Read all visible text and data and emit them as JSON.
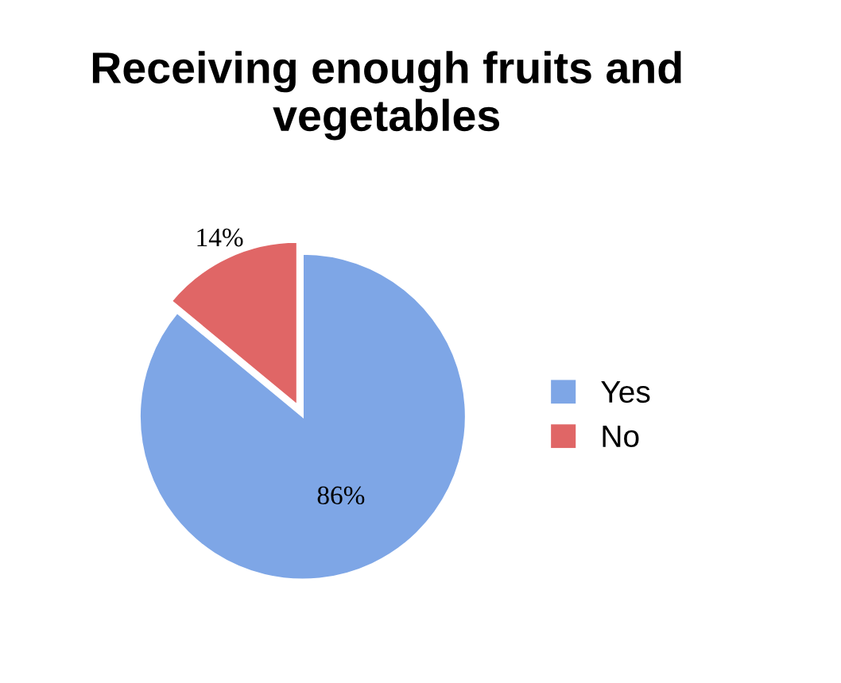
{
  "chart_data": {
    "type": "pie",
    "title": "Receiving enough fruits and vegetables",
    "categories": [
      "Yes",
      "No"
    ],
    "values": [
      86,
      14
    ],
    "value_labels": [
      "86%",
      "14%"
    ],
    "colors": [
      "#7ea6e6",
      "#e06666"
    ],
    "legend": "right"
  }
}
